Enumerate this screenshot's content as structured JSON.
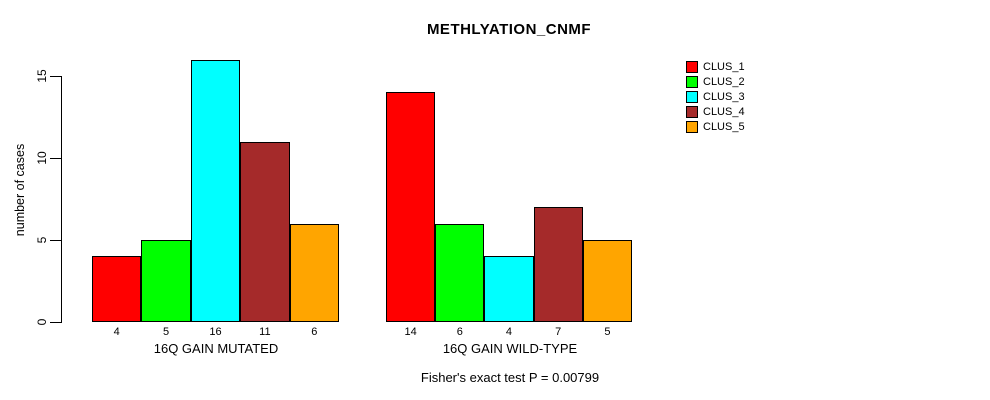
{
  "title": "METHLYATION_CNMF",
  "footer": "Fisher's exact test P = 0.00799",
  "y_axis": {
    "label": "number of cases",
    "ticks": [
      0,
      5,
      10,
      15
    ]
  },
  "legend": {
    "position": "top-right"
  },
  "chart_data": {
    "type": "bar",
    "title": "METHLYATION_CNMF",
    "xlabel": "",
    "ylabel": "number of cases",
    "ylim": [
      0,
      16.5
    ],
    "yticks": [
      0,
      5,
      10,
      15
    ],
    "grid": false,
    "legend_position": "top-right",
    "categories": [
      "16Q GAIN MUTATED",
      "16Q GAIN WILD-TYPE"
    ],
    "series": [
      {
        "name": "CLUS_1",
        "color": "#FF0000",
        "values": [
          4,
          14
        ]
      },
      {
        "name": "CLUS_2",
        "color": "#00FF00",
        "values": [
          5,
          6
        ]
      },
      {
        "name": "CLUS_3",
        "color": "#00FFFF",
        "values": [
          16,
          4
        ]
      },
      {
        "name": "CLUS_4",
        "color": "#A52A2A",
        "values": [
          11,
          7
        ]
      },
      {
        "name": "CLUS_5",
        "color": "#FFA500",
        "values": [
          6,
          5
        ]
      }
    ],
    "bar_value_labels": true,
    "annotation": "Fisher's exact test P = 0.00799"
  }
}
